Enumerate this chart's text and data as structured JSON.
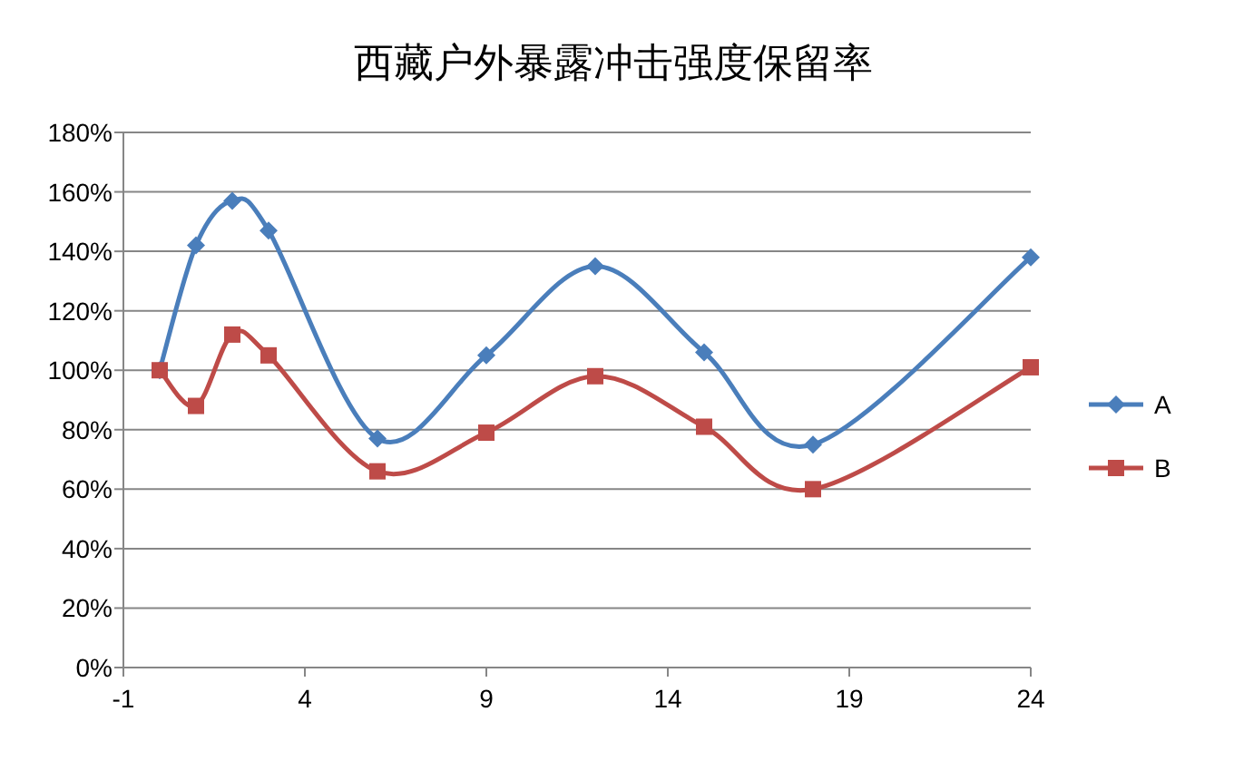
{
  "chart_data": {
    "type": "line",
    "title": "西藏户外暴露冲击强度保留率",
    "x": [
      0,
      1,
      2,
      3,
      6,
      9,
      12,
      15,
      18,
      24
    ],
    "series": [
      {
        "name": "A",
        "color": "#4a7ebb",
        "marker": "diamond",
        "values": [
          100,
          142,
          157,
          147,
          77,
          105,
          135,
          106,
          75,
          138
        ]
      },
      {
        "name": "B",
        "color": "#be4b48",
        "marker": "square",
        "values": [
          100,
          88,
          112,
          105,
          66,
          79,
          98,
          81,
          60,
          101
        ]
      }
    ],
    "xlim": [
      -1,
      24
    ],
    "xticks": [
      -1,
      4,
      9,
      14,
      19,
      24
    ],
    "ylim": [
      0,
      180
    ],
    "yticks": [
      {
        "value": 0,
        "label": "0%"
      },
      {
        "value": 20,
        "label": "20%"
      },
      {
        "value": 40,
        "label": "40%"
      },
      {
        "value": 60,
        "label": "60%"
      },
      {
        "value": 80,
        "label": "80%"
      },
      {
        "value": 100,
        "label": "100%"
      },
      {
        "value": 120,
        "label": "120%"
      },
      {
        "value": 140,
        "label": "140%"
      },
      {
        "value": 160,
        "label": "160%"
      },
      {
        "value": 180,
        "label": "180%"
      }
    ],
    "grid": "y",
    "legend": "right",
    "line_style": "solid"
  }
}
